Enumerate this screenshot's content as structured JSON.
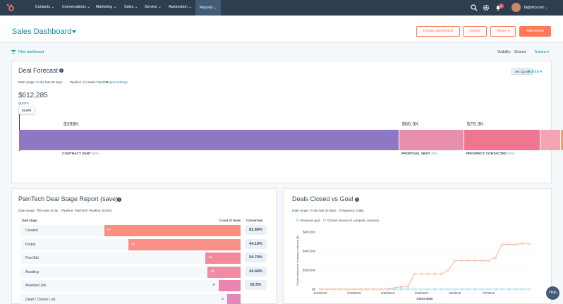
{
  "nav": {
    "items": [
      {
        "label": "Contacts ⌄"
      },
      {
        "label": "Conversations ⌄"
      },
      {
        "label": "Marketing ⌄"
      },
      {
        "label": "Sales ⌄"
      },
      {
        "label": "Service ⌄"
      },
      {
        "label": "Automation ⌄"
      },
      {
        "label": "Reports ⌄"
      }
    ],
    "notification_count": "2",
    "account": "biglytics.net ⌄"
  },
  "header": {
    "title": "Sales Dashboard",
    "create_dashboard": "Create dashboard",
    "export": "Export",
    "share": "Share ▾",
    "add_report": "Add report"
  },
  "subbar": {
    "filter": "Filter dashboard",
    "visibility_label": "Visibility:",
    "visibility_value": "Shared",
    "actions": "Actions ▾"
  },
  "forecast": {
    "title": "Deal Forecast",
    "date_range": "Date range: In the last 30 days",
    "pipeline": "Pipeline: (*) Sales Pipeline",
    "settings_link": "Report settings",
    "set_quota": "Set Quota",
    "actions": "Actions ▾",
    "total": "$612,285",
    "quota_label": "QUOTA",
    "quota_value": "$1,603",
    "segments": [
      {
        "value_label": "$388K",
        "stage": "CONTRACT SENT",
        "pct": "90%",
        "color": "#8e78c3",
        "amount": 388
      },
      {
        "value_label": "$66.3K",
        "stage": "PROPOSAL SENT",
        "pct": "40%",
        "color": "#e98fad",
        "amount": 66.3
      },
      {
        "value_label": "$78.3K",
        "stage": "PROSPECT CONTACTED",
        "pct": "30%",
        "color": "#ef7691",
        "amount": 78.3
      }
    ]
  },
  "stage_report": {
    "title": "PainTech Deal Stage Report (save)",
    "date_range": "Date range: This year so far",
    "pipeline": "Pipeline: PainTech Pipeline (SAVE)",
    "col_stage": "Deal stage",
    "col_count": "Count of Deals",
    "col_conversion": "Conversion",
    "rows": [
      {
        "stage": "Created",
        "count": "52",
        "conversion": "82.69%",
        "frac": 0.62,
        "color": "#fa8f7e"
      },
      {
        "stage": "Prebid",
        "count": "43",
        "conversion": "44.19%",
        "frac": 0.51,
        "color": "#f89088"
      },
      {
        "stage": "Post Bid",
        "count": "19",
        "conversion": "94.74%",
        "frac": 0.16,
        "color": "#f18a9b"
      },
      {
        "stage": "Awaiting",
        "count": "18",
        "conversion": "44.44%",
        "frac": 0.15,
        "color": "#ef8ca3"
      },
      {
        "stage": "Awarded Job",
        "count": "8",
        "conversion": "62.5%",
        "frac": 0.1,
        "color": "#ea86ad"
      },
      {
        "stage": "Dead / Closed Lost",
        "count": "5",
        "conversion": "",
        "frac": 0.06,
        "color": "#e288bb"
      }
    ]
  },
  "closed_goal": {
    "title": "Deals Closed vs Goal",
    "date_range": "Date range: In the last 30 days",
    "frequency": "Frequency: Daily",
    "x_axis_title": "Close date"
  },
  "chart_data": {
    "type": "line",
    "title": "Deals Closed vs Goal",
    "xlabel": "Close date",
    "ylabel": "Closed amount in company currency ($)",
    "ylim": [
      0,
      600000
    ],
    "yticks": [
      "$0",
      "$200,000",
      "$400,000",
      "$600,000"
    ],
    "xticks": [
      "2/10/2019",
      "2/15/2019",
      "2/20/2019",
      "2/25/2019",
      "3/2/2019",
      "3/7/2019"
    ],
    "legend_position": "top-left",
    "series": [
      {
        "name": "Revenue goal",
        "color": "#7fd1de",
        "values": [
          0,
          0,
          0,
          0,
          0,
          0,
          0,
          0,
          0,
          0,
          0,
          0,
          0,
          0,
          0,
          0,
          0,
          0,
          0,
          0,
          0,
          0,
          0,
          0,
          0,
          0,
          0,
          0,
          0,
          0,
          0,
          0
        ]
      },
      {
        "name": "Closed amount in company currency",
        "color": "#f5a58b",
        "values": [
          0,
          0,
          0,
          0,
          0,
          0,
          0,
          0,
          0,
          0,
          3000,
          15000,
          25000,
          30000,
          160000,
          160000,
          160000,
          160000,
          160000,
          200000,
          300000,
          300000,
          300000,
          300000,
          300000,
          300000,
          330000,
          470000,
          470000,
          470000,
          480000,
          480000
        ]
      }
    ]
  },
  "help": "Help"
}
